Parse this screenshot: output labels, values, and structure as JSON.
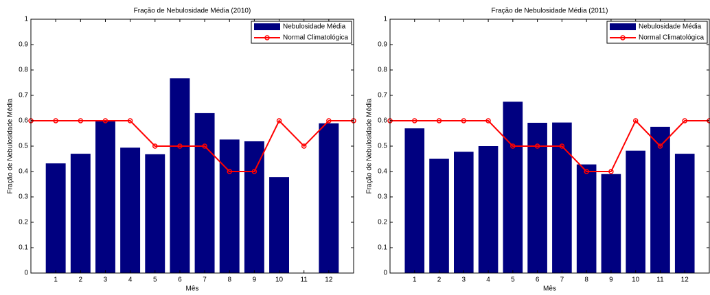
{
  "chart_data": [
    {
      "type": "bar",
      "title": "Fração de Nebulosidade Média (2010)",
      "xlabel": "Mês",
      "ylabel": "Fração de Nebulosidade Média",
      "xlim": [
        0,
        13
      ],
      "xticks": [
        1,
        2,
        3,
        4,
        5,
        6,
        7,
        8,
        9,
        10,
        11,
        12
      ],
      "ylim": [
        0,
        1
      ],
      "yticks": [
        0,
        0.1,
        0.2,
        0.3,
        0.4,
        0.5,
        0.6,
        0.7,
        0.8,
        0.9,
        1
      ],
      "legend": "upper right",
      "series": [
        {
          "name": "Nebulosidade Média",
          "type": "bar",
          "color": "#000080",
          "x": [
            1,
            2,
            3,
            4,
            5,
            6,
            7,
            8,
            9,
            10,
            11,
            12
          ],
          "values": [
            0.432,
            0.47,
            0.598,
            0.494,
            0.468,
            0.767,
            0.63,
            0.526,
            0.519,
            0.378,
            null,
            0.59
          ]
        },
        {
          "name": "Normal Climatológica",
          "type": "line",
          "color": "#ff0000",
          "x": [
            0,
            1,
            2,
            3,
            4,
            5,
            6,
            7,
            8,
            9,
            10,
            11,
            12,
            13
          ],
          "values": [
            0.6,
            0.6,
            0.6,
            0.6,
            0.6,
            0.5,
            0.5,
            0.5,
            0.4,
            0.4,
            0.6,
            0.5,
            0.6,
            0.6
          ]
        }
      ]
    },
    {
      "type": "bar",
      "title": "Fração de Nebulosidade Média (2011)",
      "xlabel": "Mês",
      "ylabel": "Fração de Nebulosidade Média",
      "xlim": [
        0,
        13
      ],
      "xticks": [
        1,
        2,
        3,
        4,
        5,
        6,
        7,
        8,
        9,
        10,
        11,
        12
      ],
      "ylim": [
        0,
        1
      ],
      "yticks": [
        0,
        0.1,
        0.2,
        0.3,
        0.4,
        0.5,
        0.6,
        0.7,
        0.8,
        0.9,
        1
      ],
      "legend": "upper right",
      "series": [
        {
          "name": "Nebulosidade Média",
          "type": "bar",
          "color": "#000080",
          "x": [
            1,
            2,
            3,
            4,
            5,
            6,
            7,
            8,
            9,
            10,
            11,
            12
          ],
          "values": [
            0.57,
            0.45,
            0.478,
            0.5,
            0.675,
            0.592,
            0.593,
            0.428,
            0.39,
            0.482,
            0.576,
            0.47
          ]
        },
        {
          "name": "Normal Climatológica",
          "type": "line",
          "color": "#ff0000",
          "x": [
            0,
            1,
            2,
            3,
            4,
            5,
            6,
            7,
            8,
            9,
            10,
            11,
            12,
            13
          ],
          "values": [
            0.6,
            0.6,
            0.6,
            0.6,
            0.6,
            0.5,
            0.5,
            0.5,
            0.4,
            0.4,
            0.6,
            0.5,
            0.6,
            0.6
          ]
        }
      ]
    }
  ]
}
